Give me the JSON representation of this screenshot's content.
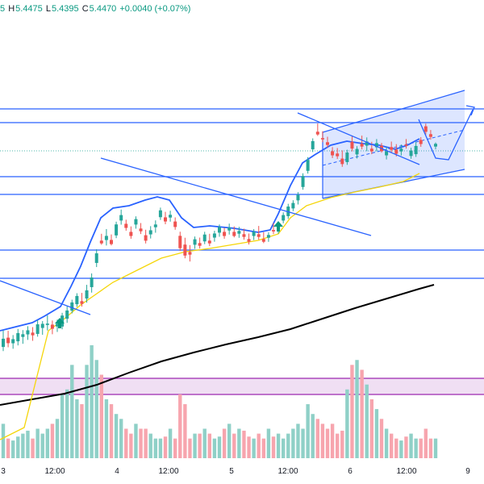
{
  "legend": {
    "high_label": "H",
    "high_value": "5.4475",
    "low_label": "L",
    "low_value": "5.4395",
    "close_label": "C",
    "close_value": "5.4470",
    "change": "+0.0040 (+0.07%)",
    "first_fragment": "5"
  },
  "colors": {
    "up": "#26a69a",
    "down": "#ef5350",
    "up_volume": "#8fd0c7",
    "down_volume": "#f7a5ae",
    "ema_fast": "#2962ff",
    "ema_mid": "#f5d60a",
    "ema_slow": "#000000",
    "trendline": "#2962ff",
    "zone": "#9c27b0"
  },
  "chart_data": {
    "type": "candlestick",
    "x_ticks": [
      "3",
      "12:00",
      "4",
      "12:00",
      "5",
      "12:00",
      "6",
      "12:00",
      "9"
    ],
    "candles": [
      [
        5.374,
        5.386,
        5.371,
        5.38
      ],
      [
        5.38,
        5.385,
        5.373,
        5.376
      ],
      [
        5.376,
        5.382,
        5.372,
        5.379
      ],
      [
        5.379,
        5.388,
        5.376,
        5.385
      ],
      [
        5.385,
        5.39,
        5.38,
        5.387
      ],
      [
        5.387,
        5.393,
        5.383,
        5.39
      ],
      [
        5.39,
        5.394,
        5.384,
        5.388
      ],
      [
        5.388,
        5.398,
        5.386,
        5.395
      ],
      [
        5.395,
        5.4,
        5.39,
        5.398
      ],
      [
        5.398,
        5.405,
        5.394,
        5.399
      ],
      [
        5.399,
        5.402,
        5.392,
        5.396
      ],
      [
        5.396,
        5.401,
        5.392,
        5.398
      ],
      [
        5.398,
        5.408,
        5.396,
        5.406
      ],
      [
        5.406,
        5.415,
        5.403,
        5.412
      ],
      [
        5.412,
        5.42,
        5.41,
        5.418
      ],
      [
        5.418,
        5.426,
        5.416,
        5.424
      ],
      [
        5.424,
        5.43,
        5.42,
        5.422
      ],
      [
        5.422,
        5.432,
        5.419,
        5.428
      ],
      [
        5.428,
        5.438,
        5.424,
        5.435
      ],
      [
        5.435,
        5.445,
        5.432,
        5.442
      ],
      [
        5.442,
        5.447,
        5.439,
        5.44
      ],
      [
        5.44,
        5.448,
        5.436,
        5.443
      ],
      [
        5.443,
        5.447,
        5.439,
        5.44
      ],
      [
        5.44,
        5.45,
        5.438,
        5.448
      ],
      [
        5.448,
        5.456,
        5.445,
        5.452
      ],
      [
        5.452,
        5.455,
        5.447,
        5.449
      ],
      [
        5.449,
        5.453,
        5.444,
        5.446
      ],
      [
        5.446,
        5.452,
        5.443,
        5.45
      ],
      [
        5.45,
        5.454,
        5.446,
        5.448
      ],
      [
        5.448,
        5.452,
        5.442,
        5.444
      ],
      [
        5.444,
        5.45,
        5.441,
        5.447
      ],
      [
        5.447,
        5.452,
        5.443,
        5.449
      ],
      [
        5.449,
        5.456,
        5.447,
        5.454
      ],
      [
        5.454,
        5.458,
        5.449,
        5.451
      ],
      [
        5.451,
        5.456,
        5.448,
        5.453
      ],
      [
        5.453,
        5.456,
        5.447,
        5.449
      ],
      [
        5.449,
        5.452,
        5.438,
        5.44
      ],
      [
        5.44,
        5.445,
        5.43,
        5.432
      ],
      [
        5.432,
        5.437,
        5.425,
        5.43
      ],
      [
        5.43,
        5.436,
        5.427,
        5.434
      ],
      [
        5.434,
        5.438,
        5.43,
        5.432
      ],
      [
        5.432,
        5.439,
        5.43,
        5.437
      ],
      [
        5.437,
        5.442,
        5.433,
        5.435
      ],
      [
        5.435,
        5.44,
        5.432,
        5.438
      ],
      [
        5.438,
        5.444,
        5.435,
        5.442
      ],
      [
        5.442,
        5.445,
        5.437,
        5.439
      ],
      [
        5.439,
        5.444,
        5.436,
        5.441
      ],
      [
        5.441,
        5.445,
        5.437,
        5.438
      ],
      [
        5.438,
        5.443,
        5.435,
        5.44
      ],
      [
        5.44,
        5.444,
        5.436,
        5.438
      ],
      [
        5.438,
        5.442,
        5.434,
        5.436
      ],
      [
        5.436,
        5.441,
        5.433,
        5.439
      ],
      [
        5.439,
        5.445,
        5.435,
        5.437
      ],
      [
        5.437,
        5.442,
        5.434,
        5.435
      ],
      [
        5.435,
        5.439,
        5.432,
        5.437
      ],
      [
        5.437,
        5.442,
        5.434,
        5.436
      ],
      [
        5.436,
        5.441,
        5.433,
        5.439
      ],
      [
        5.439,
        5.445,
        5.437,
        5.443
      ],
      [
        5.443,
        5.452,
        5.441,
        5.45
      ],
      [
        5.45,
        5.456,
        5.448,
        5.454
      ],
      [
        5.454,
        5.46,
        5.451,
        5.458
      ],
      [
        5.458,
        5.468,
        5.456,
        5.466
      ],
      [
        5.466,
        5.476,
        5.464,
        5.474
      ],
      [
        5.474,
        5.482,
        5.472,
        5.48
      ],
      [
        5.48,
        5.486,
        5.477,
        5.478
      ],
      [
        5.478,
        5.483,
        5.475,
        5.477
      ],
      [
        5.477,
        5.481,
        5.473,
        5.475
      ],
      [
        5.475,
        5.478,
        5.47,
        5.472
      ],
      [
        5.472,
        5.476,
        5.468,
        5.47
      ],
      [
        5.47,
        5.476,
        5.464,
        5.466
      ],
      [
        5.466,
        5.475,
        5.464,
        5.473
      ],
      [
        5.473,
        5.477,
        5.466,
        5.468
      ],
      [
        5.468,
        5.474,
        5.465,
        5.472
      ],
      [
        5.472,
        5.478,
        5.468,
        5.47
      ],
      [
        5.47,
        5.476,
        5.466,
        5.473
      ],
      [
        5.473,
        5.478,
        5.469,
        5.471
      ],
      [
        5.471,
        5.477,
        5.468,
        5.474
      ],
      [
        5.474,
        5.476,
        5.469,
        5.47
      ],
      [
        5.47,
        5.476,
        5.467,
        5.473
      ],
      [
        5.473,
        5.477,
        5.469,
        5.471
      ],
      [
        5.471,
        5.475,
        5.466,
        5.468
      ],
      [
        5.468,
        5.473,
        5.465,
        5.47
      ],
      [
        5.47,
        5.474,
        5.467,
        5.469
      ],
      [
        5.469,
        5.475,
        5.467,
        5.473
      ],
      [
        5.473,
        5.482,
        5.471,
        5.479
      ],
      [
        5.479,
        5.481,
        5.474,
        5.476
      ],
      [
        5.476,
        5.478,
        5.47,
        5.472
      ],
      [
        5.472,
        5.475,
        5.468,
        5.47
      ],
      [
        5.47,
        5.473,
        5.468,
        5.472
      ]
    ],
    "volume": [
      35,
      20,
      18,
      22,
      25,
      28,
      20,
      30,
      25,
      30,
      35,
      40,
      65,
      70,
      95,
      60,
      55,
      95,
      115,
      100,
      85,
      60,
      55,
      45,
      40,
      30,
      25,
      35,
      30,
      30,
      25,
      20,
      20,
      22,
      30,
      20,
      65,
      55,
      20,
      25,
      25,
      30,
      25,
      20,
      22,
      30,
      35,
      25,
      30,
      28,
      22,
      20,
      25,
      20,
      30,
      22,
      25,
      20,
      25,
      30,
      35,
      30,
      55,
      45,
      40,
      35,
      30,
      35,
      25,
      28,
      70,
      95,
      100,
      90,
      75,
      60,
      50,
      40,
      30,
      25,
      20,
      18,
      22,
      25,
      20,
      20,
      30,
      20,
      20
    ],
    "ema_fast": [
      5.377,
      5.378,
      5.38,
      5.384,
      5.387,
      5.392,
      5.398,
      5.406,
      5.415,
      5.425,
      5.431,
      5.433,
      5.431,
      5.432,
      5.44,
      5.452,
      5.462,
      5.469,
      5.472,
      5.47,
      5.469,
      5.47,
      5.471,
      5.4715
    ],
    "ema_mid": [
      5.376,
      5.378,
      5.382,
      5.387,
      5.392,
      5.397,
      5.402,
      5.406,
      5.409,
      5.412,
      5.414,
      5.416,
      5.42,
      5.426,
      5.433,
      5.438,
      5.442,
      5.445,
      5.448,
      5.452,
      5.456,
      5.459,
      5.462,
      5.464
    ],
    "ema_slow": [
      5.345,
      5.347,
      5.35,
      5.354,
      5.358,
      5.361,
      5.364,
      5.368,
      5.372,
      5.376,
      5.379,
      5.382,
      5.385,
      5.388,
      5.391,
      5.395,
      5.399,
      5.402,
      5.405,
      5.409,
      5.412,
      5.416,
      5.419,
      5.423
    ],
    "horizontal_levels": [
      5.482,
      5.478,
      5.46,
      5.455,
      5.44,
      5.432
    ],
    "current_price": 5.47,
    "ylim": [
      5.345,
      5.49
    ]
  }
}
